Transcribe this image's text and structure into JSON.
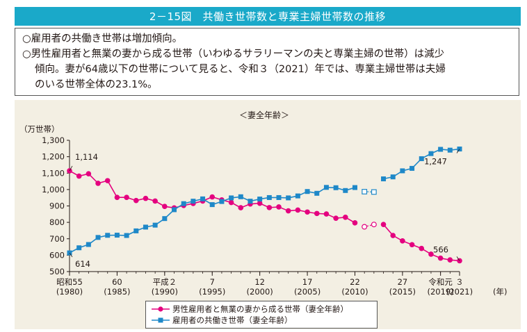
{
  "header": {
    "title": "2－15図　共働き世帯数と専業主婦世帯数の推移"
  },
  "summary": {
    "line1": "○雇用者の共働き世帯は増加傾向。",
    "line2a": "○男性雇用者と無業の妻から成る世帯（いわゆるサラリーマンの夫と専業主婦の世帯）は減少",
    "line2b": "傾向。妻が64歳以下の世帯について見ると、令和３（2021）年では、専業主婦世帯は夫婦",
    "line2c": "のいる世帯全体の23.1%。"
  },
  "chart_data": {
    "type": "line",
    "subtitle": "＜妻全年齢＞",
    "unit_label": "（万世帯）",
    "ylim": [
      500,
      1300
    ],
    "yticks": [
      "500",
      "600",
      "700",
      "800",
      "900",
      "1,000",
      "1,100",
      "1,200",
      "1,300"
    ],
    "xlim": [
      1980,
      2021
    ],
    "x_ticks": [
      {
        "x": 1980,
        "l1": "昭和55",
        "l2": "(1980)"
      },
      {
        "x": 1985,
        "l1": "60",
        "l2": "(1985)"
      },
      {
        "x": 1990,
        "l1": "平成２",
        "l2": "(1990)"
      },
      {
        "x": 1995,
        "l1": "7",
        "l2": "(1995)"
      },
      {
        "x": 2000,
        "l1": "12",
        "l2": "(2000)"
      },
      {
        "x": 2005,
        "l1": "17",
        "l2": "(2005)"
      },
      {
        "x": 2010,
        "l1": "22",
        "l2": "(2010)"
      },
      {
        "x": 2015,
        "l1": "27",
        "l2": "(2015)"
      },
      {
        "x": 2019,
        "l1": "令和元",
        "l2": "(2019)"
      },
      {
        "x": 2021,
        "l1": "３",
        "l2": "(2021)"
      }
    ],
    "x_unit": "(年)",
    "series": [
      {
        "name": "男性雇用者と無業の妻から成る世帯（妻全年齢）",
        "color": "#e4007f",
        "marker": "circle",
        "segments": [
          {
            "x": [
              1980,
              1981,
              1982,
              1983,
              1984,
              1985,
              1986,
              1987,
              1988,
              1989,
              1990,
              1991,
              1992,
              1993,
              1994,
              1995,
              1996,
              1997,
              1998,
              1999,
              2000,
              2001,
              2002,
              2003,
              2004,
              2005,
              2006,
              2007,
              2008,
              2009,
              2010
            ],
            "y": [
              1114,
              1082,
              1096,
              1038,
              1054,
              952,
              952,
              933,
              946,
              930,
              897,
              888,
              903,
              915,
              930,
              955,
              937,
              921,
              889,
              912,
              916,
              890,
              894,
              870,
              875,
              863,
              854,
              851,
              825,
              831,
              797
            ]
          },
          {
            "x": [
              2013,
              2014,
              2015,
              2016,
              2017,
              2018,
              2019,
              2020,
              2021
            ],
            "y": [
              787,
              720,
              687,
              664,
              641,
              606,
              582,
              571,
              566
            ]
          }
        ],
        "gap": {
          "x": [
            2011,
            2012
          ],
          "y": [
            773,
            787
          ]
        }
      },
      {
        "name": "雇用者の共働き世帯（妻全年齢）",
        "color": "#1e88c8",
        "marker": "square",
        "segments": [
          {
            "x": [
              1980,
              1981,
              1982,
              1983,
              1984,
              1985,
              1986,
              1987,
              1988,
              1989,
              1990,
              1991,
              1992,
              1993,
              1994,
              1995,
              1996,
              1997,
              1998,
              1999,
              2000,
              2001,
              2002,
              2003,
              2004,
              2005,
              2006,
              2007,
              2008,
              2009,
              2010
            ],
            "y": [
              614,
              645,
              665,
              708,
              721,
              722,
              720,
              748,
              771,
              783,
              823,
              877,
              914,
              929,
              943,
              908,
              927,
              949,
              956,
              929,
              942,
              951,
              951,
              949,
              961,
              988,
              977,
              1013,
              1011,
              994,
              1012
            ]
          },
          {
            "x": [
              2013,
              2014,
              2015,
              2016,
              2017,
              2018,
              2019,
              2020,
              2021
            ],
            "y": [
              1065,
              1077,
              1114,
              1129,
              1188,
              1219,
              1245,
              1240,
              1247
            ]
          }
        ],
        "gap": {
          "x": [
            2011,
            2012
          ],
          "y": [
            987,
            985
          ]
        }
      }
    ],
    "annotations": [
      {
        "text": "1,114",
        "series": 0,
        "x": 1980
      },
      {
        "text": "614",
        "series": 1,
        "x": 1980
      },
      {
        "text": "566",
        "series": 0,
        "x": 2021
      },
      {
        "text": "1,247",
        "series": 1,
        "x": 2021
      }
    ]
  }
}
